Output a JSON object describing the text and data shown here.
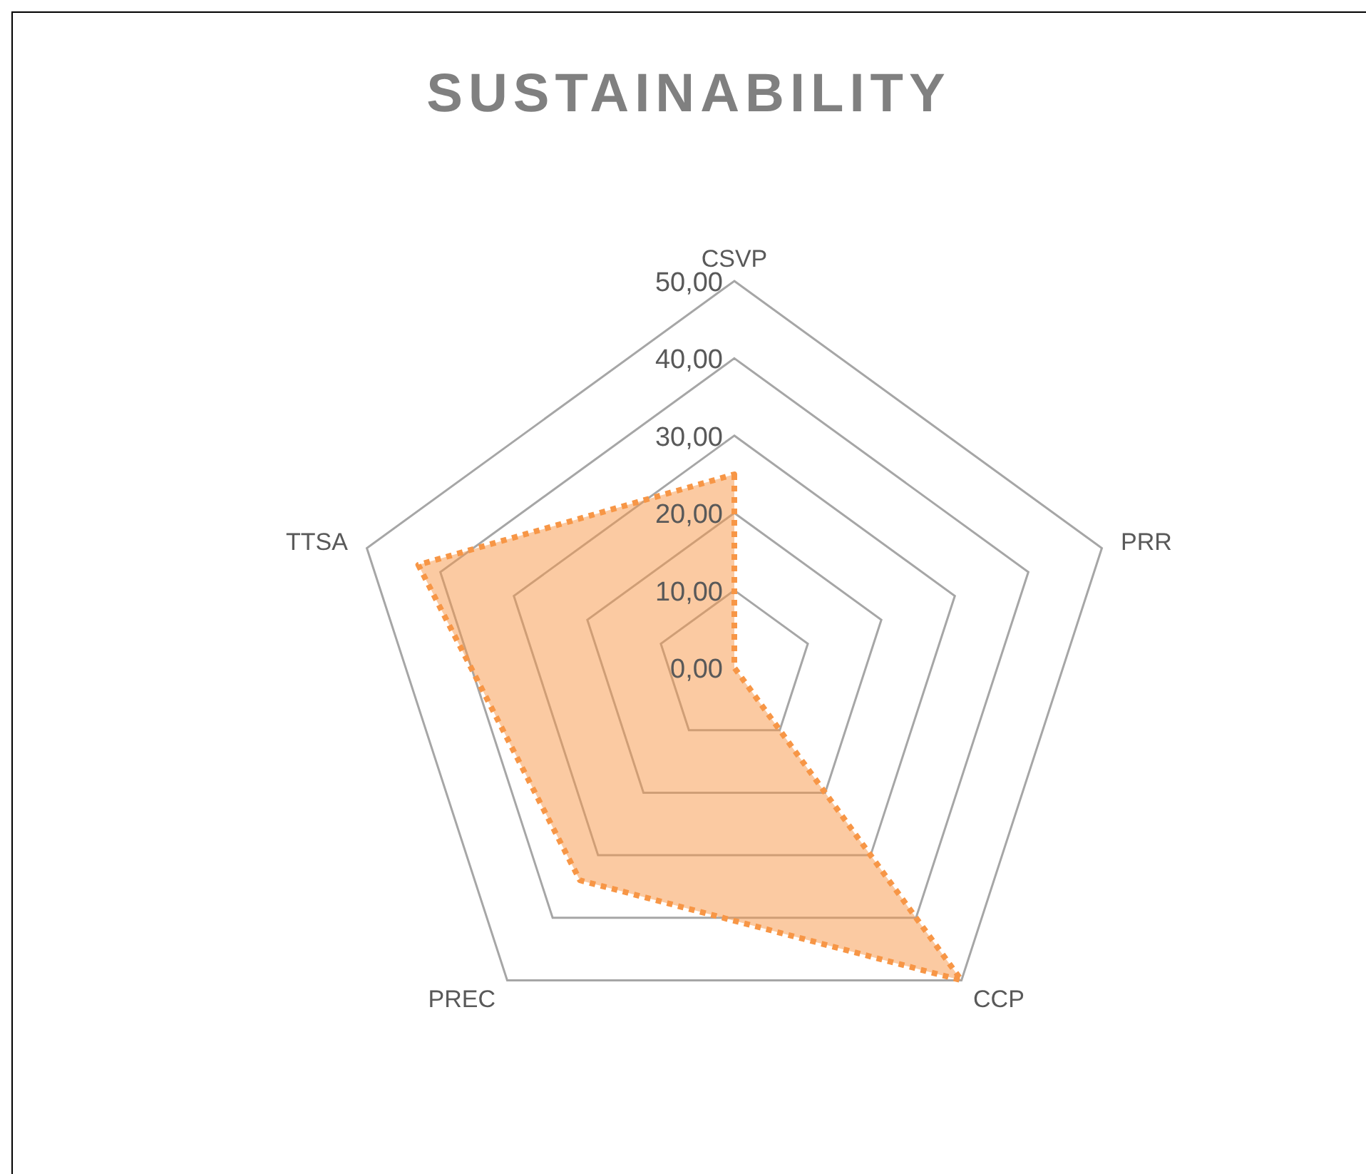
{
  "chart_data": {
    "type": "radar",
    "title": "SUSTAINABILITY",
    "categories": [
      "CSVP",
      "PRR",
      "CCP",
      "PREC",
      "TTSA"
    ],
    "series": [
      {
        "color": "#f79646",
        "values": [
          25,
          0,
          50,
          34,
          43
        ]
      }
    ],
    "ylim": [
      0,
      50
    ],
    "yticks": [
      {
        "value": 0,
        "label": "0,00"
      },
      {
        "value": 10,
        "label": "10,00"
      },
      {
        "value": 20,
        "label": "20,00"
      },
      {
        "value": 30,
        "label": "30,00"
      },
      {
        "value": 40,
        "label": "40,00"
      },
      {
        "value": 50,
        "label": "50,00"
      }
    ],
    "grid": true,
    "line_style": "dotted"
  }
}
